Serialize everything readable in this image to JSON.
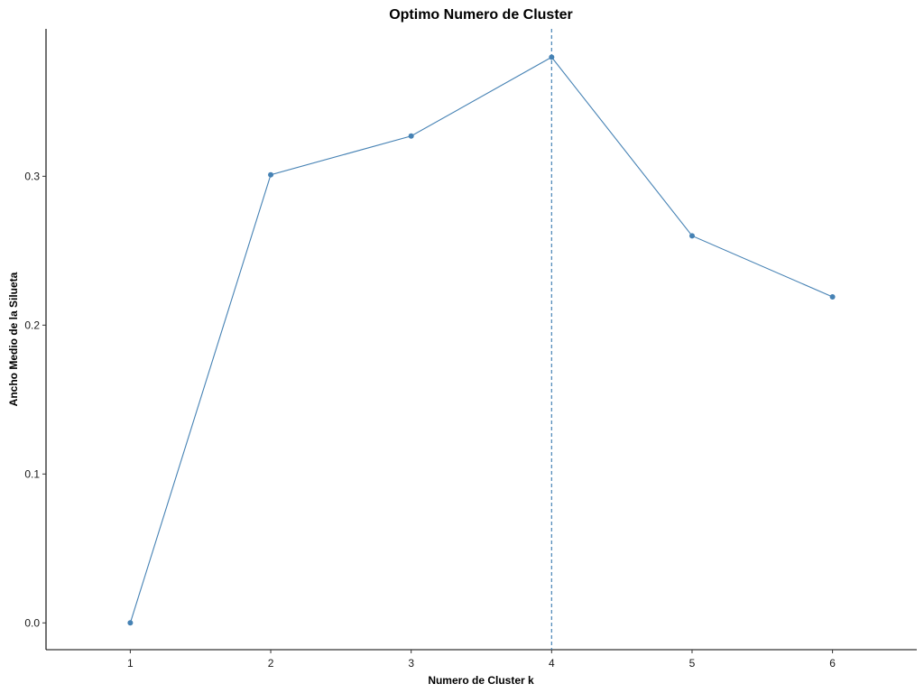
{
  "chart_data": {
    "type": "line",
    "title": "Optimo Numero de Cluster",
    "xlabel": "Numero de Cluster k",
    "ylabel": "Ancho Medio de la Silueta",
    "x": [
      1,
      2,
      3,
      4,
      5,
      6
    ],
    "x_tick_labels": [
      "1",
      "2",
      "3",
      "4",
      "5",
      "6"
    ],
    "y_ticks": [
      0.0,
      0.1,
      0.2,
      0.3
    ],
    "y_tick_labels": [
      "0.0",
      "0.1",
      "0.2",
      "0.3"
    ],
    "series": [
      {
        "values": [
          0.0,
          0.301,
          0.327,
          0.38,
          0.26,
          0.219
        ],
        "color": "#4682B4",
        "marker": "circle"
      }
    ],
    "reference_line": {
      "orientation": "vertical",
      "x": 4,
      "style": "dashed",
      "color": "#4682B4"
    },
    "xlim": [
      0.4,
      6.6
    ],
    "ylim": [
      -0.018,
      0.399
    ],
    "grid": false,
    "legend": "none"
  }
}
